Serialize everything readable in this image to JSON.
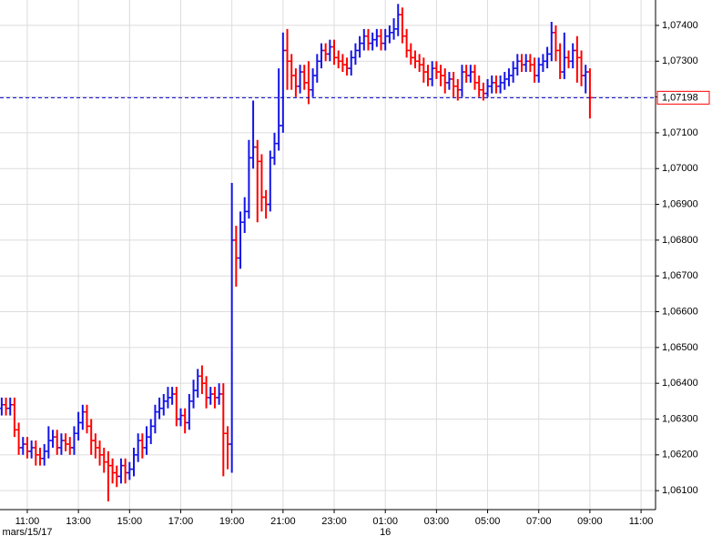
{
  "chart_data": {
    "type": "ohlc",
    "up_color": "#1414e6",
    "down_color": "#ff0000",
    "grid": true,
    "xlim": [
      596,
      2134
    ],
    "ylim": [
      1.06047,
      1.07471
    ],
    "x": [
      600,
      610,
      620,
      630,
      640,
      650,
      660,
      670,
      680,
      690,
      700,
      710,
      720,
      730,
      740,
      750,
      760,
      770,
      780,
      790,
      800,
      810,
      820,
      830,
      840,
      850,
      860,
      870,
      880,
      890,
      900,
      910,
      920,
      930,
      940,
      950,
      960,
      970,
      980,
      990,
      1000,
      1010,
      1020,
      1030,
      1040,
      1050,
      1060,
      1070,
      1080,
      1090,
      1100,
      1110,
      1120,
      1130,
      1140,
      1150,
      1160,
      1170,
      1180,
      1190,
      1200,
      1210,
      1220,
      1230,
      1240,
      1250,
      1260,
      1270,
      1280,
      1290,
      1300,
      1310,
      1320,
      1330,
      1340,
      1350,
      1360,
      1370,
      1380,
      1390,
      1400,
      1410,
      1420,
      1430,
      1440,
      1450,
      1460,
      1470,
      1480,
      1490,
      1500,
      1510,
      1520,
      1530,
      1540,
      1550,
      1560,
      1570,
      1580,
      1590,
      1600,
      1610,
      1620,
      1630,
      1640,
      1650,
      1660,
      1670,
      1680,
      1690,
      1700,
      1710,
      1720,
      1730,
      1740,
      1750,
      1760,
      1770,
      1780,
      1790,
      1800,
      1810,
      1820,
      1830,
      1840,
      1850,
      1860,
      1870,
      1880,
      1890,
      1900,
      1910,
      1920,
      1930,
      1940,
      1950,
      1960,
      1970,
      1980
    ],
    "open": [
      1.0633,
      1.0634,
      1.0633,
      1.0634,
      1.0627,
      1.0622,
      1.0623,
      1.0621,
      1.0622,
      1.062,
      1.0619,
      1.0621,
      1.0624,
      1.0625,
      1.0622,
      1.0624,
      1.0623,
      1.0622,
      1.0626,
      1.0629,
      1.0632,
      1.0628,
      1.0624,
      1.0622,
      1.062,
      1.0618,
      1.0617,
      1.0615,
      1.0614,
      1.0617,
      1.0615,
      1.0616,
      1.062,
      1.0624,
      1.0622,
      1.0625,
      1.0628,
      1.0632,
      1.0633,
      1.0635,
      1.0636,
      1.0637,
      1.063,
      1.0631,
      1.0629,
      1.0635,
      1.0638,
      1.0642,
      1.064,
      1.0636,
      1.0637,
      1.0636,
      1.0637,
      1.0626,
      1.0623,
      1.068,
      1.0675,
      1.0685,
      1.0688,
      1.0703,
      1.0706,
      1.0702,
      1.0692,
      1.069,
      1.0703,
      1.0707,
      1.0712,
      1.0733,
      1.073,
      1.0726,
      1.0723,
      1.0727,
      1.0724,
      1.0722,
      1.0726,
      1.073,
      1.0733,
      1.0732,
      1.0734,
      1.0731,
      1.073,
      1.0729,
      1.0728,
      1.0731,
      1.0733,
      1.0735,
      1.0737,
      1.0735,
      1.0736,
      1.0737,
      1.0735,
      1.0737,
      1.0738,
      1.0739,
      1.0743,
      1.0737,
      1.0733,
      1.0731,
      1.073,
      1.0729,
      1.0727,
      1.0725,
      1.0728,
      1.0727,
      1.0726,
      1.0724,
      1.0725,
      1.0723,
      1.0722,
      1.0727,
      1.0726,
      1.0727,
      1.0724,
      1.0722,
      1.0721,
      1.0723,
      1.0724,
      1.0723,
      1.0724,
      1.0725,
      1.0726,
      1.0728,
      1.073,
      1.0729,
      1.073,
      1.0729,
      1.0726,
      1.0729,
      1.073,
      1.0732,
      1.0738,
      1.0733,
      1.0727,
      1.0731,
      1.073,
      1.0733,
      1.0731,
      1.0726,
      1.0727
    ],
    "high": [
      1.0636,
      1.0636,
      1.0636,
      1.0636,
      1.0629,
      1.0625,
      1.0625,
      1.0624,
      1.0624,
      1.0622,
      1.0623,
      1.0628,
      1.0627,
      1.0627,
      1.0626,
      1.0626,
      1.0625,
      1.0628,
      1.0632,
      1.0634,
      1.0634,
      1.063,
      1.0626,
      1.0624,
      1.0622,
      1.0621,
      1.0619,
      1.0617,
      1.0619,
      1.0619,
      1.0618,
      1.0622,
      1.0626,
      1.0626,
      1.0628,
      1.063,
      1.0634,
      1.0636,
      1.0637,
      1.0639,
      1.0639,
      1.0639,
      1.0633,
      1.0633,
      1.0637,
      1.0641,
      1.0644,
      1.0645,
      1.0642,
      1.0639,
      1.0639,
      1.064,
      1.064,
      1.0628,
      1.0696,
      1.0684,
      1.0688,
      1.0692,
      1.0708,
      1.0719,
      1.0708,
      1.0704,
      1.0694,
      1.0705,
      1.071,
      1.0728,
      1.0738,
      1.0739,
      1.0732,
      1.0728,
      1.0729,
      1.0729,
      1.073,
      1.0728,
      1.0732,
      1.0735,
      1.0735,
      1.0736,
      1.0736,
      1.0733,
      1.0732,
      1.0731,
      1.0733,
      1.0735,
      1.0737,
      1.0739,
      1.0739,
      1.0738,
      1.0739,
      1.0739,
      1.0739,
      1.074,
      1.0742,
      1.0746,
      1.0745,
      1.0739,
      1.0735,
      1.0733,
      1.0732,
      1.0731,
      1.0729,
      1.073,
      1.073,
      1.0729,
      1.0728,
      1.0727,
      1.0727,
      1.0725,
      1.0729,
      1.0729,
      1.0729,
      1.0729,
      1.0726,
      1.0724,
      1.0725,
      1.0726,
      1.0726,
      1.0726,
      1.0727,
      1.0728,
      1.073,
      1.0732,
      1.0732,
      1.0732,
      1.0732,
      1.0731,
      1.0731,
      1.0732,
      1.0734,
      1.0741,
      1.074,
      1.0735,
      1.0738,
      1.0733,
      1.0735,
      1.0737,
      1.0733,
      1.0729,
      1.0728
    ],
    "low": [
      1.0631,
      1.0631,
      1.0631,
      1.0625,
      1.062,
      1.062,
      1.0619,
      1.0619,
      1.0617,
      1.0617,
      1.0617,
      1.0619,
      1.0622,
      1.062,
      1.062,
      1.0621,
      1.062,
      1.062,
      1.0624,
      1.0627,
      1.0626,
      1.062,
      1.0619,
      1.0617,
      1.0615,
      1.0607,
      1.0612,
      1.0611,
      1.0612,
      1.0612,
      1.0613,
      1.0614,
      1.0618,
      1.0619,
      1.062,
      1.0623,
      1.0626,
      1.063,
      1.0631,
      1.0633,
      1.0634,
      1.0628,
      1.0628,
      1.0626,
      1.0627,
      1.0633,
      1.0636,
      1.0637,
      1.0633,
      1.0634,
      1.0633,
      1.0634,
      1.0614,
      1.0616,
      1.0615,
      1.0667,
      1.0672,
      1.0682,
      1.0686,
      1.07,
      1.0685,
      1.0688,
      1.0686,
      1.0688,
      1.0701,
      1.0705,
      1.071,
      1.0722,
      1.0722,
      1.072,
      1.0721,
      1.0722,
      1.0718,
      1.072,
      1.0724,
      1.0728,
      1.073,
      1.073,
      1.0729,
      1.0728,
      1.0727,
      1.0726,
      1.0726,
      1.0729,
      1.0731,
      1.0733,
      1.0733,
      1.0733,
      1.0734,
      1.0733,
      1.0733,
      1.0735,
      1.0736,
      1.0737,
      1.0735,
      1.0731,
      1.0729,
      1.0728,
      1.0727,
      1.0724,
      1.0723,
      1.0723,
      1.0725,
      1.0723,
      1.0721,
      1.0722,
      1.072,
      1.0719,
      1.072,
      1.0724,
      1.0724,
      1.0722,
      1.072,
      1.0719,
      1.072,
      1.0721,
      1.0721,
      1.0721,
      1.0722,
      1.0723,
      1.0724,
      1.0726,
      1.0727,
      1.0727,
      1.0727,
      1.0724,
      1.0724,
      1.0727,
      1.0728,
      1.073,
      1.073,
      1.0725,
      1.0725,
      1.0728,
      1.0728,
      1.0724,
      1.0723,
      1.0721,
      1.0714
    ],
    "close": [
      1.0634,
      1.0633,
      1.0634,
      1.0627,
      1.0622,
      1.0623,
      1.0621,
      1.0622,
      1.062,
      1.0619,
      1.0621,
      1.0624,
      1.0625,
      1.0622,
      1.0624,
      1.0623,
      1.0622,
      1.0626,
      1.0629,
      1.0632,
      1.0628,
      1.0624,
      1.0622,
      1.062,
      1.0618,
      1.0617,
      1.0615,
      1.0614,
      1.0617,
      1.0615,
      1.0616,
      1.062,
      1.0624,
      1.0622,
      1.0625,
      1.0628,
      1.0632,
      1.0633,
      1.0635,
      1.0636,
      1.0637,
      1.063,
      1.0631,
      1.0629,
      1.0635,
      1.0638,
      1.0642,
      1.064,
      1.0636,
      1.0637,
      1.0636,
      1.0637,
      1.0626,
      1.0623,
      1.068,
      1.0675,
      1.0685,
      1.0688,
      1.0703,
      1.0706,
      1.0702,
      1.0692,
      1.069,
      1.0703,
      1.0707,
      1.0712,
      1.0733,
      1.073,
      1.0726,
      1.0723,
      1.0727,
      1.0724,
      1.0722,
      1.0726,
      1.073,
      1.0733,
      1.0732,
      1.0734,
      1.0731,
      1.073,
      1.0729,
      1.0728,
      1.0731,
      1.0733,
      1.0735,
      1.0737,
      1.0735,
      1.0736,
      1.0737,
      1.0735,
      1.0737,
      1.0738,
      1.0739,
      1.0743,
      1.0737,
      1.0733,
      1.0731,
      1.073,
      1.0729,
      1.0727,
      1.0725,
      1.0728,
      1.0727,
      1.0726,
      1.0724,
      1.0725,
      1.0723,
      1.0722,
      1.0727,
      1.0726,
      1.0727,
      1.0724,
      1.0722,
      1.0721,
      1.0723,
      1.0724,
      1.0723,
      1.0724,
      1.0725,
      1.0726,
      1.0728,
      1.073,
      1.0729,
      1.073,
      1.0729,
      1.0726,
      1.0729,
      1.073,
      1.0732,
      1.0738,
      1.0733,
      1.0727,
      1.0731,
      1.073,
      1.0733,
      1.0731,
      1.0726,
      1.0727,
      1.07198
    ],
    "xticks": [
      {
        "value": 660,
        "label": "11:00"
      },
      {
        "value": 780,
        "label": "13:00"
      },
      {
        "value": 900,
        "label": "15:00"
      },
      {
        "value": 1020,
        "label": "17:00"
      },
      {
        "value": 1140,
        "label": "19:00"
      },
      {
        "value": 1260,
        "label": "21:00"
      },
      {
        "value": 1380,
        "label": "23:00"
      },
      {
        "value": 1500,
        "label": "01:00"
      },
      {
        "value": 1620,
        "label": "03:00"
      },
      {
        "value": 1740,
        "label": "05:00"
      },
      {
        "value": 1860,
        "label": "07:00"
      },
      {
        "value": 1980,
        "label": "09:00"
      },
      {
        "value": 2100,
        "label": "11:00"
      }
    ],
    "date_ticks": [
      {
        "value": 660,
        "label": "mars/15/17"
      },
      {
        "value": 1500,
        "label": "16"
      }
    ],
    "yticks": [
      {
        "value": 1.061,
        "label": "1,06100"
      },
      {
        "value": 1.062,
        "label": "1,06200"
      },
      {
        "value": 1.063,
        "label": "1,06300"
      },
      {
        "value": 1.064,
        "label": "1,06400"
      },
      {
        "value": 1.065,
        "label": "1,06500"
      },
      {
        "value": 1.066,
        "label": "1,06600"
      },
      {
        "value": 1.067,
        "label": "1,06700"
      },
      {
        "value": 1.068,
        "label": "1,06800"
      },
      {
        "value": 1.069,
        "label": "1,06900"
      },
      {
        "value": 1.07,
        "label": "1,07000"
      },
      {
        "value": 1.071,
        "label": "1,07100"
      },
      {
        "value": 1.072,
        "label": "1,07200"
      },
      {
        "value": 1.073,
        "label": "1,07300"
      },
      {
        "value": 1.074,
        "label": "1,07400"
      }
    ],
    "current_price": {
      "value": 1.07198,
      "label": "1,07198",
      "color": "#0000cc",
      "box_color": "#ff0000"
    }
  }
}
